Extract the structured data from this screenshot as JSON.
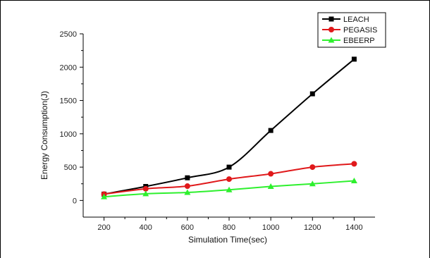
{
  "chart_data": {
    "type": "line",
    "title": "",
    "xlabel": "Simulation Time(sec)",
    "ylabel": "Energy Consumption(J)",
    "x": [
      200,
      400,
      600,
      800,
      1000,
      1200,
      1400
    ],
    "xlim": [
      100,
      1500
    ],
    "ylim": [
      -250,
      2500
    ],
    "xticks": [
      200,
      400,
      600,
      800,
      1000,
      1200,
      1400
    ],
    "yticks": [
      0,
      500,
      1000,
      1500,
      2000,
      2500
    ],
    "grid": false,
    "legend_position": "top-right",
    "series": [
      {
        "name": "LEACH",
        "color": "#000000",
        "marker": "square",
        "values": [
          95,
          210,
          340,
          500,
          1050,
          1600,
          2120
        ]
      },
      {
        "name": "PEGASIS",
        "color": "#e0191b",
        "marker": "circle",
        "values": [
          95,
          175,
          215,
          320,
          400,
          500,
          550
        ]
      },
      {
        "name": "EBEERP",
        "color": "#2ef02e",
        "marker": "triangle",
        "values": [
          55,
          100,
          120,
          160,
          210,
          250,
          295
        ]
      }
    ]
  }
}
